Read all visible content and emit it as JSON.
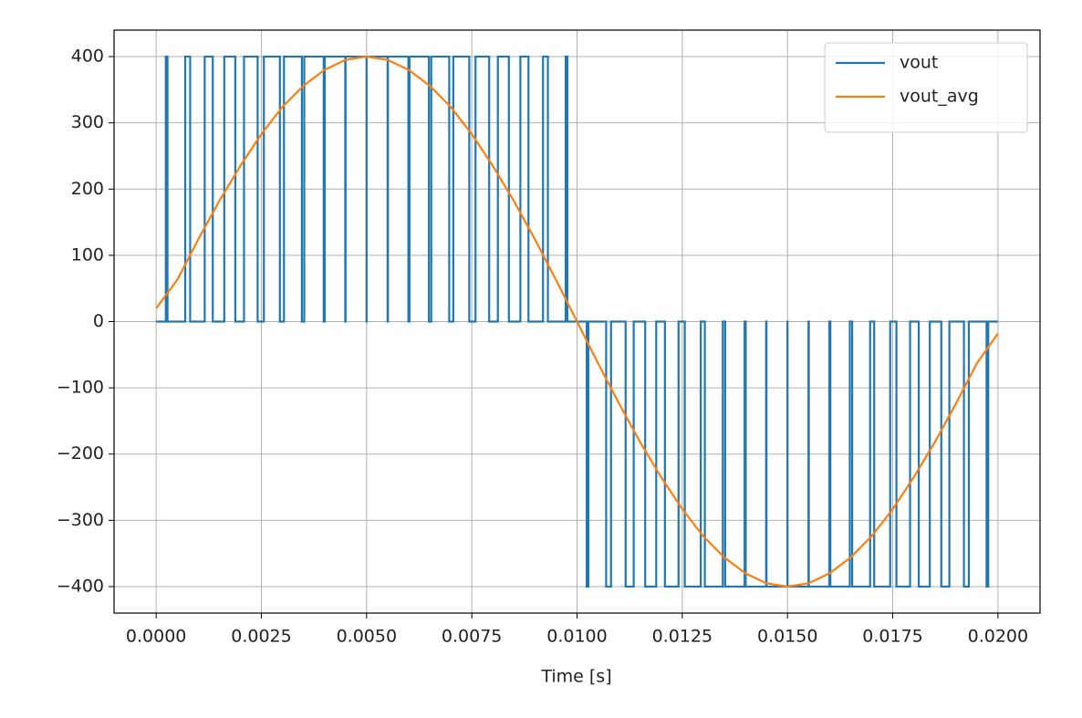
{
  "chart_data": {
    "type": "line",
    "drawstyle": "steps-post",
    "xlabel": "Time [s]",
    "xlim": [
      -0.001,
      0.021
    ],
    "ylim": [
      -440,
      440
    ],
    "xticks": [
      {
        "value": 0,
        "label": "0.0000"
      },
      {
        "value": 0.0025,
        "label": "0.0025"
      },
      {
        "value": 0.005,
        "label": "0.0050"
      },
      {
        "value": 0.0075,
        "label": "0.0075"
      },
      {
        "value": 0.01,
        "label": "0.0100"
      },
      {
        "value": 0.0125,
        "label": "0.0125"
      },
      {
        "value": 0.015,
        "label": "0.0150"
      },
      {
        "value": 0.0175,
        "label": "0.0175"
      },
      {
        "value": 0.02,
        "label": "0.0200"
      }
    ],
    "yticks": [
      {
        "value": -400,
        "label": "−400"
      },
      {
        "value": -300,
        "label": "−300"
      },
      {
        "value": -200,
        "label": "−200"
      },
      {
        "value": -100,
        "label": "−100"
      },
      0,
      100,
      200,
      300,
      400
    ],
    "grid": true,
    "legend": "upper right",
    "series": [
      {
        "name": "vout",
        "color": "#1f77b4",
        "steps": true,
        "x": [
          0,
          0.00023,
          0.00027,
          0.000692,
          0.000808,
          0.001154,
          0.001346,
          0.001619,
          0.001881,
          0.002088,
          0.002412,
          0.00256,
          0.00294,
          0.003037,
          0.003463,
          0.003519,
          0.003981,
          0.004007,
          0.004493,
          0.004501,
          0.004999,
          0.005001,
          0.005499,
          0.005507,
          0.005993,
          0.006019,
          0.006481,
          0.006537,
          0.006963,
          0.00706,
          0.00744,
          0.007588,
          0.007912,
          0.008119,
          0.008381,
          0.008654,
          0.008846,
          0.009192,
          0.009308,
          0.00973,
          0.00977,
          0.01023,
          0.01027,
          0.010692,
          0.010808,
          0.011154,
          0.011346,
          0.011619,
          0.011881,
          0.012088,
          0.012412,
          0.01256,
          0.01294,
          0.013037,
          0.013463,
          0.013519,
          0.013981,
          0.014007,
          0.014493,
          0.014501,
          0.014999,
          0.015001,
          0.015499,
          0.015507,
          0.015993,
          0.016019,
          0.016481,
          0.016537,
          0.016963,
          0.01706,
          0.01744,
          0.017588,
          0.017912,
          0.018119,
          0.018381,
          0.018654,
          0.018846,
          0.019192,
          0.019308,
          0.01973,
          0.01977,
          0.02
        ],
        "values": [
          0,
          400,
          0,
          400,
          0,
          400,
          0,
          400,
          0,
          400,
          0,
          400,
          0,
          400,
          0,
          400,
          0,
          400,
          0,
          400,
          0,
          400,
          0,
          400,
          0,
          400,
          0,
          400,
          0,
          400,
          0,
          400,
          0,
          400,
          0,
          400,
          0,
          400,
          0,
          400,
          0,
          -400,
          0,
          -400,
          0,
          -400,
          0,
          -400,
          0,
          -400,
          0,
          -400,
          0,
          -400,
          0,
          -400,
          0,
          -400,
          0,
          -400,
          0,
          -400,
          0,
          -400,
          0,
          -400,
          0,
          -400,
          0,
          -400,
          0,
          -400,
          0,
          -400,
          0,
          -400,
          0,
          -400,
          0,
          -400,
          0,
          0
        ]
      },
      {
        "name": "vout_avg",
        "color": "#ff7f0e",
        "steps": false,
        "x": [
          0,
          0.0005,
          0.001,
          0.0015,
          0.002,
          0.0025,
          0.003,
          0.0035,
          0.004,
          0.0045,
          0.005,
          0.0055,
          0.006,
          0.0065,
          0.007,
          0.0075,
          0.008,
          0.0085,
          0.009,
          0.0095,
          0.01,
          0.0105,
          0.011,
          0.0115,
          0.012,
          0.0125,
          0.013,
          0.0135,
          0.014,
          0.0145,
          0.015,
          0.0155,
          0.016,
          0.0165,
          0.017,
          0.0175,
          0.018,
          0.0185,
          0.019,
          0.0195,
          0.02
        ],
        "values": [
          20,
          63,
          124,
          182,
          235,
          283,
          324,
          356,
          380,
          395,
          400,
          395,
          380,
          356,
          324,
          283,
          235,
          182,
          124,
          63,
          0,
          -63,
          -124,
          -182,
          -235,
          -283,
          -324,
          -356,
          -380,
          -395,
          -400,
          -395,
          -380,
          -356,
          -324,
          -283,
          -235,
          -182,
          -124,
          -63,
          -18
        ]
      }
    ]
  }
}
